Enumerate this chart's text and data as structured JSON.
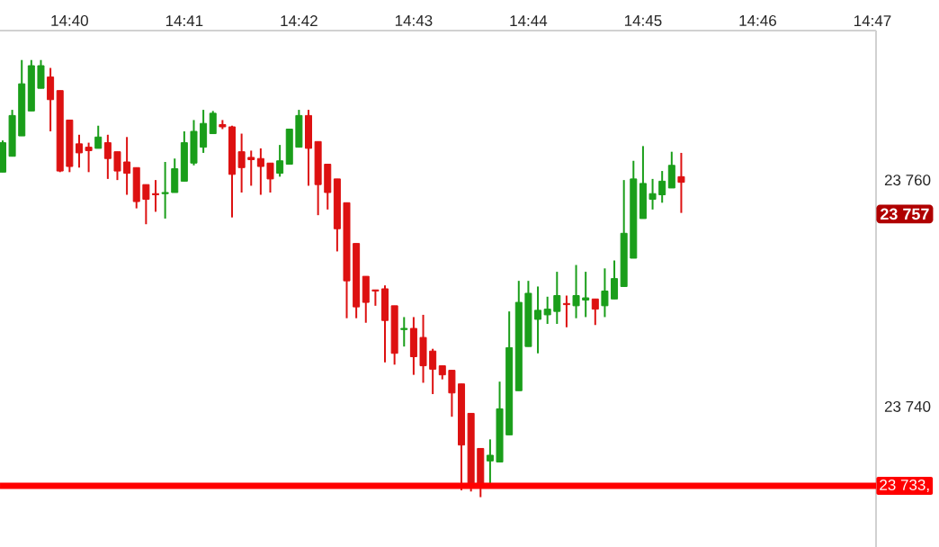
{
  "chart_data": {
    "type": "candlestick",
    "x": [
      14.656944,
      14.658333,
      14.659722,
      14.661111,
      14.6625,
      14.663889,
      14.665278,
      14.666667,
      14.668056,
      14.669444,
      14.670833,
      14.672222,
      14.673611,
      14.675,
      14.676389,
      14.677778,
      14.679167,
      14.680556,
      14.681944,
      14.683333,
      14.684722,
      14.686111,
      14.6875,
      14.688889,
      14.690278,
      14.691667,
      14.693056,
      14.694444,
      14.695833,
      14.697222,
      14.698611,
      14.7,
      14.701389,
      14.702778,
      14.704167,
      14.705556,
      14.706944,
      14.708333,
      14.709722,
      14.711111,
      14.7125,
      14.713889,
      14.715278,
      14.716667,
      14.718056,
      14.719444,
      14.720833,
      14.722222,
      14.723611,
      14.725,
      14.726389,
      14.727778,
      14.729167,
      14.730556,
      14.731944,
      14.733333,
      14.734722,
      14.736111,
      14.7375,
      14.738889,
      14.740278,
      14.741667,
      14.743056,
      14.744444,
      14.745833,
      14.747222,
      14.748611,
      14.75,
      14.751389,
      14.752778,
      14.754167,
      14.755556
    ],
    "ohlc": [
      [
        23760.7,
        23763.5,
        23760.7,
        23763.3
      ],
      [
        23762.1,
        23766.2,
        23762.1,
        23765.7
      ],
      [
        23763.9,
        23770.6,
        23763.9,
        23768.5
      ],
      [
        23766.1,
        23770.6,
        23766.1,
        23770.1
      ],
      [
        23768.1,
        23770.6,
        23768.1,
        23770.1
      ],
      [
        23769.1,
        23769.9,
        23764.3,
        23767.1
      ],
      [
        23767.9,
        23767.9,
        23760.7,
        23760.8
      ],
      [
        23765.3,
        23765.3,
        23760.7,
        23761.2
      ],
      [
        23763.2,
        23764.0,
        23761.1,
        23762.4
      ],
      [
        23762.9,
        23763.3,
        23760.7,
        23762.6
      ],
      [
        23762.8,
        23764.8,
        23762.8,
        23763.8
      ],
      [
        23763.3,
        23764.0,
        23760.1,
        23761.9
      ],
      [
        23762.5,
        23762.5,
        23760.0,
        23760.8
      ],
      [
        23761.6,
        23763.8,
        23758.7,
        23760.6
      ],
      [
        23761.1,
        23761.1,
        23757.5,
        23758.1
      ],
      [
        23759.6,
        23759.6,
        23756.1,
        23758.3
      ],
      [
        23758.8,
        23760.0,
        23757.2,
        23758.7
      ],
      [
        23758.8,
        23761.6,
        23756.6,
        23758.9
      ],
      [
        23758.9,
        23761.9,
        23758.9,
        23761.0
      ],
      [
        23759.9,
        23764.3,
        23759.9,
        23763.3
      ],
      [
        23761.5,
        23765.3,
        23761.3,
        23764.3
      ],
      [
        23762.9,
        23766.2,
        23762.4,
        23765.0
      ],
      [
        23764.1,
        23766.1,
        23764.1,
        23765.9
      ],
      [
        23764.9,
        23765.3,
        23764.5,
        23764.7
      ],
      [
        23764.7,
        23764.8,
        23756.7,
        23760.5
      ],
      [
        23762.5,
        23764.1,
        23758.9,
        23761.1
      ],
      [
        23762.0,
        23762.6,
        23759.5,
        23761.8
      ],
      [
        23761.9,
        23762.8,
        23758.7,
        23761.2
      ],
      [
        23761.5,
        23761.5,
        23758.9,
        23760.1
      ],
      [
        23760.6,
        23763.1,
        23760.3,
        23761.7
      ],
      [
        23761.4,
        23764.5,
        23761.4,
        23764.5
      ],
      [
        23762.9,
        23766.2,
        23762.9,
        23765.7
      ],
      [
        23765.7,
        23766.2,
        23759.5,
        23762.8
      ],
      [
        23763.4,
        23763.4,
        23756.9,
        23759.6
      ],
      [
        23761.4,
        23761.4,
        23757.4,
        23758.9
      ],
      [
        23760.1,
        23760.1,
        23753.7,
        23755.7
      ],
      [
        23758.0,
        23758.0,
        23747.8,
        23751.1
      ],
      [
        23754.4,
        23754.4,
        23747.8,
        23748.8
      ],
      [
        23751.5,
        23751.5,
        23747.4,
        23749.2
      ],
      [
        23750.3,
        23750.3,
        23748.9,
        23750.2
      ],
      [
        23750.4,
        23750.7,
        23743.9,
        23747.6
      ],
      [
        23748.9,
        23748.9,
        23743.7,
        23744.7
      ],
      [
        23746.8,
        23747.9,
        23745.3,
        23746.9
      ],
      [
        23746.9,
        23747.9,
        23742.8,
        23744.4
      ],
      [
        23746.1,
        23748.1,
        23742.1,
        23743.6
      ],
      [
        23744.9,
        23745.1,
        23741.1,
        23743.3
      ],
      [
        23743.6,
        23743.6,
        23742.4,
        23742.8
      ],
      [
        23743.2,
        23743.2,
        23739.1,
        23741.2
      ],
      [
        23742.0,
        23742.0,
        23732.6,
        23736.6
      ],
      [
        23739.4,
        23739.4,
        23732.5,
        23733.0
      ],
      [
        23736.3,
        23736.3,
        23732.0,
        23733.0
      ],
      [
        23735.2,
        23737.1,
        23733.0,
        23735.7
      ],
      [
        23735.1,
        23742.2,
        23735.1,
        23739.8
      ],
      [
        23737.5,
        23748.4,
        23737.5,
        23745.2
      ],
      [
        23741.4,
        23751.1,
        23741.4,
        23749.2
      ],
      [
        23745.3,
        23751.1,
        23745.3,
        23750.0
      ],
      [
        23747.7,
        23750.6,
        23744.7,
        23748.5
      ],
      [
        23748.1,
        23749.7,
        23747.3,
        23748.6
      ],
      [
        23748.4,
        23751.9,
        23747.3,
        23749.8
      ],
      [
        23749.1,
        23749.8,
        23747.0,
        23749.0
      ],
      [
        23748.9,
        23752.5,
        23747.8,
        23749.8
      ],
      [
        23749.4,
        23751.9,
        23747.9,
        23749.6
      ],
      [
        23749.5,
        23749.5,
        23747.2,
        23748.6
      ],
      [
        23748.9,
        23752.2,
        23747.9,
        23750.2
      ],
      [
        23749.5,
        23752.9,
        23749.5,
        23751.3
      ],
      [
        23750.6,
        23760.0,
        23750.6,
        23755.3
      ],
      [
        23753.1,
        23761.7,
        23753.1,
        23760.1
      ],
      [
        23756.6,
        23763.0,
        23756.6,
        23759.7
      ],
      [
        23758.3,
        23760.1,
        23757.4,
        23758.8
      ],
      [
        23758.7,
        23760.8,
        23758.0,
        23759.9
      ],
      [
        23759.3,
        23762.5,
        23759.3,
        23761.3
      ],
      [
        23760.3,
        23762.4,
        23757.1,
        23759.8
      ]
    ],
    "colors": [
      "#1a9e1a",
      "#1a9e1a",
      "#1a9e1a",
      "#1a9e1a",
      "#1a9e1a",
      "#dd1111",
      "#dd1111",
      "#dd1111",
      "#dd1111",
      "#dd1111",
      "#1a9e1a",
      "#dd1111",
      "#dd1111",
      "#dd1111",
      "#dd1111",
      "#dd1111",
      "#dd1111",
      "#1a9e1a",
      "#1a9e1a",
      "#1a9e1a",
      "#1a9e1a",
      "#1a9e1a",
      "#1a9e1a",
      "#dd1111",
      "#dd1111",
      "#dd1111",
      "#dd1111",
      "#dd1111",
      "#dd1111",
      "#1a9e1a",
      "#1a9e1a",
      "#1a9e1a",
      "#dd1111",
      "#dd1111",
      "#dd1111",
      "#dd1111",
      "#dd1111",
      "#dd1111",
      "#dd1111",
      "#dd1111",
      "#dd1111",
      "#dd1111",
      "#1a9e1a",
      "#dd1111",
      "#dd1111",
      "#dd1111",
      "#dd1111",
      "#dd1111",
      "#dd1111",
      "#dd1111",
      "#dd1111",
      "#1a9e1a",
      "#1a9e1a",
      "#1a9e1a",
      "#1a9e1a",
      "#1a9e1a",
      "#1a9e1a",
      "#1a9e1a",
      "#1a9e1a",
      "#dd1111",
      "#1a9e1a",
      "#1a9e1a",
      "#dd1111",
      "#1a9e1a",
      "#1a9e1a",
      "#1a9e1a",
      "#1a9e1a",
      "#1a9e1a",
      "#1a9e1a",
      "#1a9e1a",
      "#1a9e1a",
      "#dd1111"
    ],
    "xlim": [
      14.65656,
      14.78386
    ],
    "xticks": [
      {
        "value": 14.666667,
        "label": "14:40"
      },
      {
        "value": 14.683333,
        "label": "14:41"
      },
      {
        "value": 14.7,
        "label": "14:42"
      },
      {
        "value": 14.716667,
        "label": "14:43"
      },
      {
        "value": 14.733333,
        "label": "14:44"
      },
      {
        "value": 14.75,
        "label": "14:45"
      },
      {
        "value": 14.766667,
        "label": "14:46"
      },
      {
        "value": 14.783333,
        "label": "14:47"
      }
    ],
    "ylim": [
      23727.6,
      23773.2
    ],
    "yticks": [
      {
        "value": 23740,
        "label": "23 740"
      },
      {
        "value": 23760,
        "label": "23 760"
      }
    ],
    "ref_lines": [
      {
        "axis": "y",
        "value": 23733,
        "label": "23 733,",
        "color": "#ff0000"
      }
    ],
    "annotations": [
      {
        "text": "23 757",
        "y": 23757
      }
    ]
  }
}
